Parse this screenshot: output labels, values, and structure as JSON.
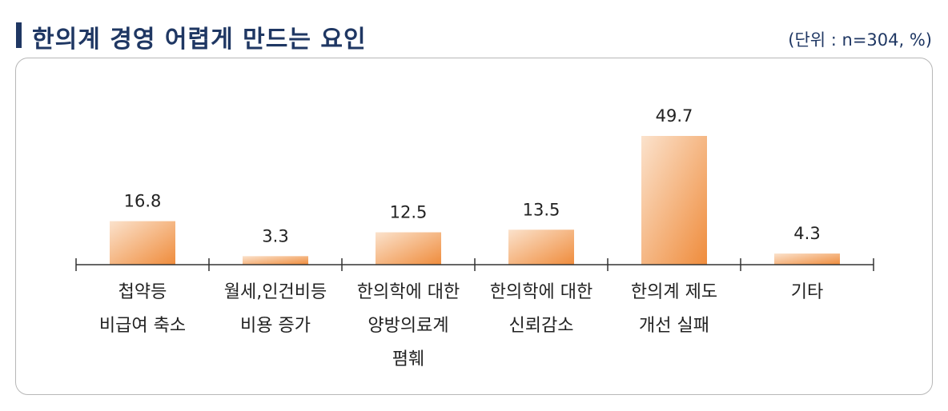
{
  "header": {
    "title": "한의계 경영 어렵게 만드는 요인",
    "unit": "(단위 : n=304,  %)"
  },
  "colors": {
    "title": "#1f3763",
    "bar_light": "#fbe2cc",
    "bar_dark": "#ef8c3c",
    "axis": "#333333",
    "text": "#222222"
  },
  "chart_data": {
    "type": "bar",
    "title": "한의계 경영 어렵게 만드는 요인",
    "xlabel": "",
    "ylabel": "",
    "ylim": [
      0,
      60
    ],
    "grid": false,
    "categories": [
      [
        "첩약등",
        "비급여 축소"
      ],
      [
        "월세,인건비등",
        "비용 증가"
      ],
      [
        "한의학에 대한",
        "양방의료계",
        "폄훼"
      ],
      [
        "한의학에 대한",
        "신뢰감소"
      ],
      [
        "한의계 제도",
        "개선 실패"
      ],
      [
        "기타"
      ]
    ],
    "values": [
      16.8,
      3.3,
      12.5,
      13.5,
      49.7,
      4.3
    ],
    "value_labels": [
      "16.8",
      "3.3",
      "12.5",
      "13.5",
      "49.7",
      "4.3"
    ]
  }
}
